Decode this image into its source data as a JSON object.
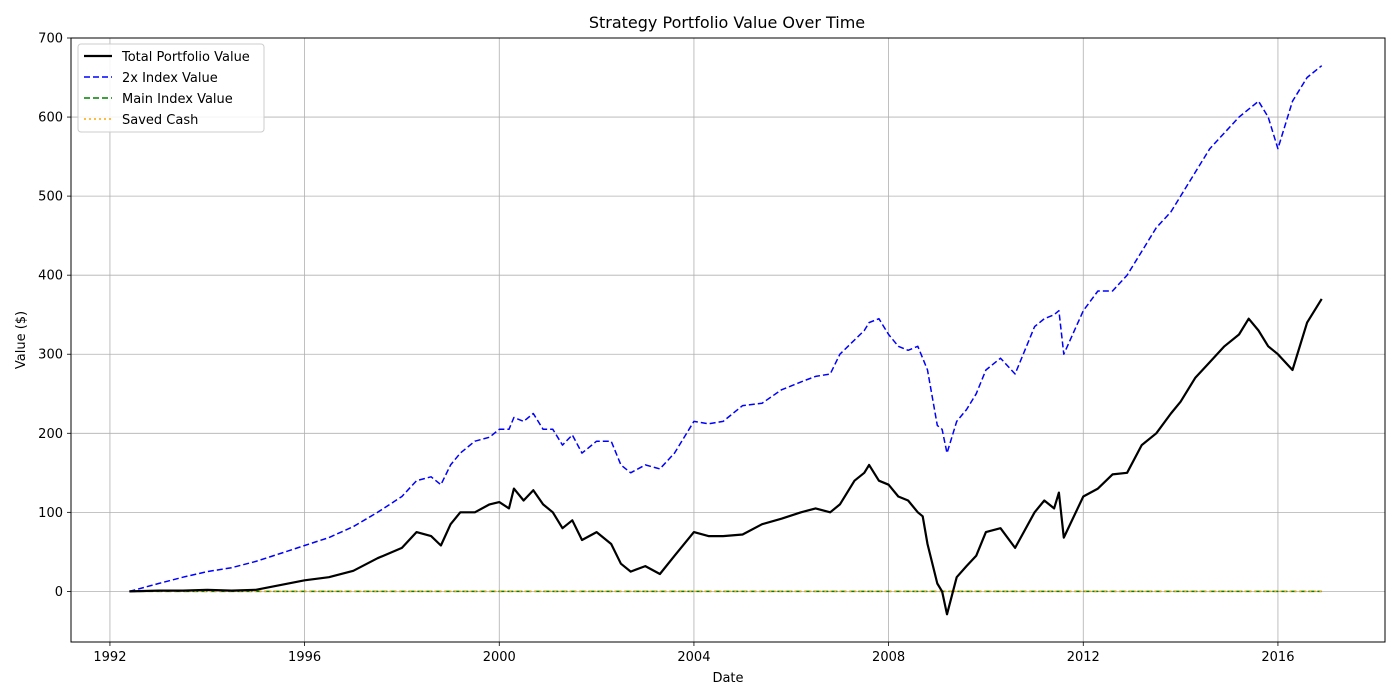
{
  "chart_data": {
    "type": "line",
    "title": "Strategy Portfolio Value Over Time",
    "xlabel": "Date",
    "ylabel": "Value ($)",
    "xlim": [
      1991.2,
      2018.2
    ],
    "ylim": [
      -64,
      700
    ],
    "xticks": [
      1992,
      1996,
      2000,
      2004,
      2008,
      2012,
      2016
    ],
    "yticks": [
      0,
      100,
      200,
      300,
      400,
      500,
      600,
      700
    ],
    "grid": true,
    "legend_position": "top-left",
    "series": [
      {
        "name": "Total Portfolio Value",
        "color": "#000000",
        "style": "solid",
        "x": [
          1992.4,
          1993.0,
          1993.5,
          1994.0,
          1994.5,
          1995.0,
          1995.5,
          1996.0,
          1996.5,
          1997.0,
          1997.5,
          1998.0,
          1998.3,
          1998.6,
          1998.8,
          1999.0,
          1999.2,
          1999.5,
          1999.8,
          2000.0,
          2000.2,
          2000.3,
          2000.5,
          2000.7,
          2000.9,
          2001.1,
          2001.3,
          2001.5,
          2001.7,
          2002.0,
          2002.3,
          2002.5,
          2002.7,
          2003.0,
          2003.3,
          2003.6,
          2004.0,
          2004.3,
          2004.6,
          2005.0,
          2005.4,
          2005.8,
          2006.2,
          2006.5,
          2006.8,
          2007.0,
          2007.3,
          2007.5,
          2007.6,
          2007.8,
          2008.0,
          2008.2,
          2008.4,
          2008.6,
          2008.7,
          2008.8,
          2009.0,
          2009.1,
          2009.2,
          2009.4,
          2009.6,
          2009.8,
          2010.0,
          2010.3,
          2010.6,
          2011.0,
          2011.2,
          2011.4,
          2011.5,
          2011.6,
          2012.0,
          2012.3,
          2012.6,
          2012.9,
          2013.2,
          2013.5,
          2013.8,
          2014.0,
          2014.3,
          2014.6,
          2014.9,
          2015.2,
          2015.4,
          2015.6,
          2015.8,
          2016.0,
          2016.3,
          2016.6,
          2016.9
        ],
        "y": [
          0,
          1,
          1,
          2,
          1,
          2,
          8,
          14,
          18,
          26,
          42,
          55,
          75,
          70,
          58,
          85,
          100,
          100,
          110,
          113,
          105,
          130,
          115,
          128,
          110,
          100,
          80,
          90,
          65,
          75,
          60,
          35,
          25,
          32,
          22,
          45,
          75,
          70,
          70,
          72,
          85,
          92,
          100,
          105,
          100,
          110,
          140,
          150,
          160,
          140,
          135,
          120,
          115,
          100,
          95,
          60,
          10,
          0,
          -29,
          18,
          32,
          45,
          75,
          80,
          55,
          100,
          115,
          105,
          125,
          68,
          120,
          130,
          148,
          150,
          185,
          200,
          225,
          240,
          270,
          290,
          310,
          325,
          345,
          330,
          310,
          300,
          280,
          340,
          370
        ]
      },
      {
        "name": "2x Index Value",
        "color": "#0000ff",
        "style": "dashed",
        "x": [
          1992.4,
          1993.0,
          1993.5,
          1994.0,
          1994.5,
          1995.0,
          1995.5,
          1996.0,
          1996.5,
          1997.0,
          1997.5,
          1998.0,
          1998.3,
          1998.6,
          1998.8,
          1999.0,
          1999.2,
          1999.5,
          1999.8,
          2000.0,
          2000.2,
          2000.3,
          2000.5,
          2000.7,
          2000.9,
          2001.1,
          2001.3,
          2001.5,
          2001.7,
          2002.0,
          2002.3,
          2002.5,
          2002.7,
          2003.0,
          2003.3,
          2003.6,
          2004.0,
          2004.3,
          2004.6,
          2005.0,
          2005.4,
          2005.8,
          2006.2,
          2006.5,
          2006.8,
          2007.0,
          2007.3,
          2007.5,
          2007.6,
          2007.8,
          2008.0,
          2008.2,
          2008.4,
          2008.6,
          2008.7,
          2008.8,
          2009.0,
          2009.1,
          2009.2,
          2009.4,
          2009.6,
          2009.8,
          2010.0,
          2010.3,
          2010.6,
          2011.0,
          2011.2,
          2011.4,
          2011.5,
          2011.6,
          2012.0,
          2012.3,
          2012.6,
          2012.9,
          2013.2,
          2013.5,
          2013.8,
          2014.0,
          2014.3,
          2014.6,
          2014.9,
          2015.2,
          2015.4,
          2015.6,
          2015.8,
          2016.0,
          2016.3,
          2016.6,
          2016.9
        ],
        "y": [
          0,
          10,
          18,
          25,
          30,
          38,
          48,
          58,
          68,
          82,
          100,
          120,
          140,
          145,
          135,
          160,
          175,
          190,
          195,
          205,
          205,
          220,
          215,
          225,
          205,
          205,
          185,
          198,
          175,
          190,
          190,
          160,
          150,
          160,
          155,
          175,
          215,
          212,
          215,
          235,
          238,
          255,
          265,
          272,
          275,
          300,
          318,
          330,
          340,
          345,
          325,
          310,
          305,
          310,
          295,
          280,
          210,
          205,
          175,
          215,
          230,
          250,
          280,
          295,
          275,
          335,
          345,
          350,
          355,
          300,
          355,
          380,
          380,
          400,
          430,
          460,
          480,
          500,
          530,
          560,
          580,
          600,
          610,
          620,
          600,
          560,
          620,
          650,
          665
        ]
      },
      {
        "name": "Main Index Value",
        "color": "#008000",
        "style": "dashed",
        "x": [
          1992.4,
          2016.9
        ],
        "y": [
          0,
          0
        ]
      },
      {
        "name": "Saved Cash",
        "color": "#ffa500",
        "style": "dotted",
        "x": [
          1992.4,
          2016.9
        ],
        "y": [
          0,
          0
        ]
      }
    ]
  }
}
